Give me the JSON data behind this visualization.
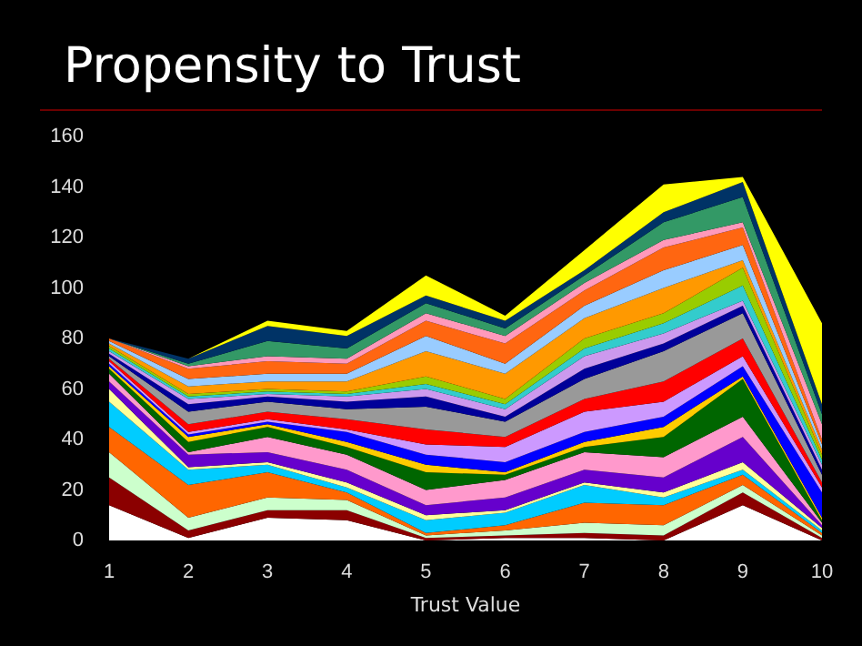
{
  "chart_data": {
    "type": "area",
    "stacked": true,
    "title": "Propensity to Trust",
    "xlabel": "Trust Value",
    "categories": [
      "1",
      "2",
      "3",
      "4",
      "5",
      "6",
      "7",
      "8",
      "9",
      "10"
    ],
    "ylim": [
      0,
      160
    ],
    "yticks": [
      0,
      20,
      40,
      60,
      80,
      100,
      120,
      140,
      160
    ],
    "grid": false,
    "series": [
      {
        "color": "#ffffff",
        "values": [
          14,
          1,
          9,
          8,
          0,
          1,
          1,
          0,
          14,
          0
        ]
      },
      {
        "color": "#8b0000",
        "values": [
          11,
          3,
          3,
          4,
          1,
          1,
          2,
          2,
          5,
          1
        ]
      },
      {
        "color": "#ccffcc",
        "values": [
          10,
          5,
          5,
          4,
          1,
          2,
          4,
          4,
          3,
          1
        ]
      },
      {
        "color": "#ff6600",
        "values": [
          10,
          13,
          10,
          3,
          1,
          2,
          8,
          8,
          4,
          1
        ]
      },
      {
        "color": "#00ccff",
        "values": [
          10,
          6,
          3,
          2,
          5,
          5,
          7,
          3,
          2,
          1
        ]
      },
      {
        "color": "#ffff99",
        "values": [
          5,
          1,
          1,
          2,
          2,
          1,
          1,
          2,
          3,
          1
        ]
      },
      {
        "color": "#6600cc",
        "values": [
          3,
          5,
          4,
          5,
          4,
          5,
          5,
          6,
          10,
          1
        ]
      },
      {
        "color": "#ff99cc",
        "values": [
          3,
          1,
          6,
          6,
          6,
          7,
          7,
          8,
          8,
          1
        ]
      },
      {
        "color": "#006600",
        "values": [
          2,
          4,
          4,
          3,
          7,
          2,
          2,
          8,
          15,
          1
        ]
      },
      {
        "color": "#ffcc00",
        "values": [
          1,
          2,
          1,
          2,
          3,
          1,
          2,
          4,
          1,
          1
        ]
      },
      {
        "color": "#0000ff",
        "values": [
          1,
          1,
          1,
          4,
          4,
          4,
          4,
          4,
          4,
          10
        ]
      },
      {
        "color": "#cc99ff",
        "values": [
          1,
          1,
          1,
          1,
          4,
          6,
          8,
          6,
          4,
          2
        ]
      },
      {
        "color": "#ff0000",
        "values": [
          1,
          3,
          3,
          4,
          6,
          4,
          5,
          8,
          7,
          2
        ]
      },
      {
        "color": "#999999",
        "values": [
          1,
          5,
          4,
          4,
          9,
          6,
          8,
          12,
          10,
          3
        ]
      },
      {
        "color": "#000099",
        "values": [
          1,
          3,
          2,
          3,
          4,
          2,
          4,
          3,
          3,
          2
        ]
      },
      {
        "color": "#cc99ee",
        "values": [
          1,
          2,
          1,
          2,
          3,
          3,
          5,
          4,
          2,
          2
        ]
      },
      {
        "color": "#33cccc",
        "values": [
          1,
          1,
          1,
          1,
          2,
          2,
          3,
          4,
          6,
          2
        ]
      },
      {
        "color": "#99cc00",
        "values": [
          1,
          1,
          1,
          1,
          3,
          2,
          4,
          4,
          7,
          2
        ]
      },
      {
        "color": "#ff9900",
        "values": [
          1,
          3,
          3,
          4,
          10,
          10,
          8,
          10,
          3,
          2
        ]
      },
      {
        "color": "#99ccff",
        "values": [
          1,
          3,
          3,
          3,
          6,
          4,
          5,
          7,
          6,
          2
        ]
      },
      {
        "color": "#ff6611",
        "values": [
          1,
          4,
          5,
          4,
          6,
          8,
          6,
          9,
          7,
          2
        ]
      },
      {
        "color": "#ff99bb",
        "values": [
          0,
          1,
          2,
          2,
          3,
          3,
          3,
          3,
          2,
          6
        ]
      },
      {
        "color": "#339966",
        "values": [
          0,
          1,
          6,
          4,
          4,
          3,
          3,
          7,
          10,
          4
        ]
      },
      {
        "color": "#003366",
        "values": [
          0,
          2,
          6,
          5,
          3,
          3,
          2,
          4,
          6,
          4
        ]
      },
      {
        "color": "#ffff00",
        "values": [
          0,
          0,
          2,
          2,
          8,
          2,
          8,
          11,
          2,
          32
        ]
      }
    ]
  }
}
